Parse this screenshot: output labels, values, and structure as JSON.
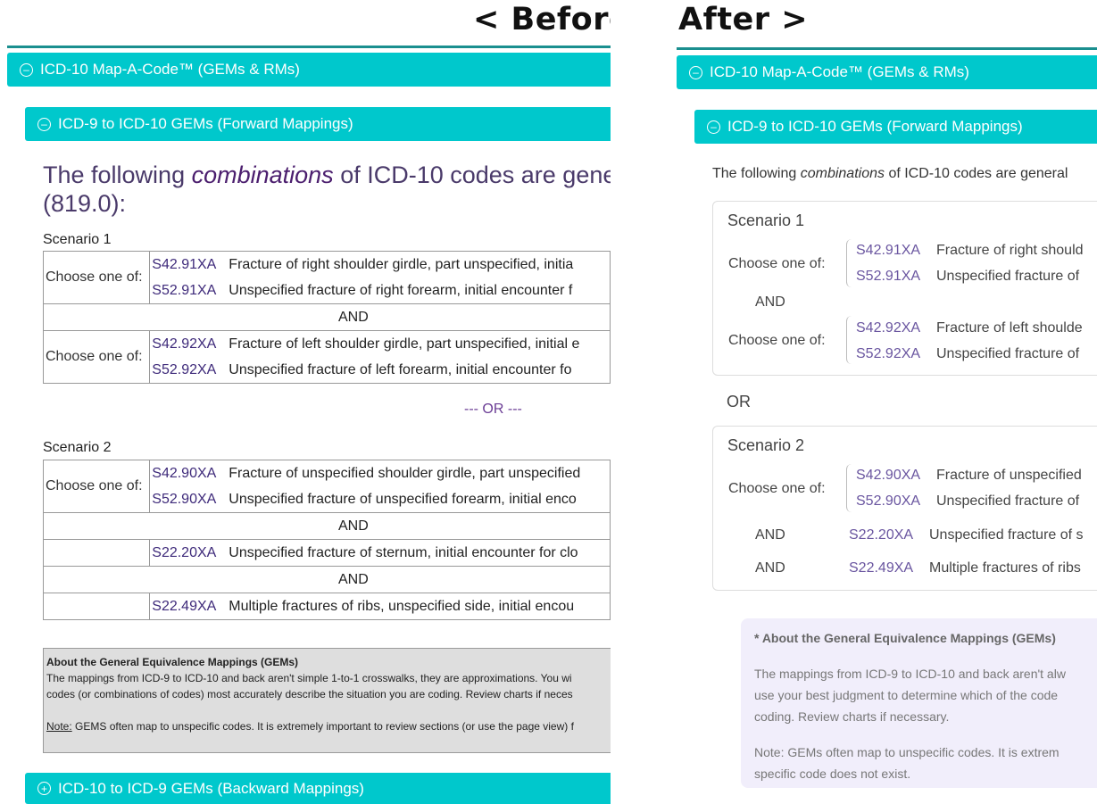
{
  "before": {
    "heading": "< Before",
    "panel_title": "ICD-10 Map-A-Code™ (GEMs & RMs)",
    "section_title": "ICD-9 to ICD-10 GEMs (Forward Mappings)",
    "intro_prefix": "The following ",
    "intro_em": "combinations",
    "intro_suffix": " of ICD-10 codes are gene",
    "intro_line2": "(819.0):",
    "scenario1_label": "Scenario 1",
    "scenario2_label": "Scenario 2",
    "choose_label": "Choose one of:",
    "and_label": "AND",
    "or_label": "--- OR ---",
    "codes": {
      "c1": "S42.91XA",
      "d1": "Fracture of right shoulder girdle, part unspecified, initia",
      "c2": "S52.91XA",
      "d2": "Unspecified fracture of right forearm, initial encounter f",
      "c3": "S42.92XA",
      "d3": "Fracture of left shoulder girdle, part unspecified, initial e",
      "c4": "S52.92XA",
      "d4": "Unspecified fracture of left forearm, initial encounter fo",
      "c5": "S42.90XA",
      "d5": "Fracture of unspecified shoulder girdle, part unspecified",
      "c6": "S52.90XA",
      "d6": "Unspecified fracture of unspecified forearm, initial enco",
      "c7": "S22.20XA",
      "d7": "Unspecified fracture of sternum, initial encounter for clo",
      "c8": "S22.49XA",
      "d8": "Multiple fractures of ribs, unspecified side, initial encou"
    },
    "note_title": "About the General Equivalence Mappings (GEMs)",
    "note_line1": "The mappings from ICD-9 to ICD-10 and back aren't simple 1-to-1 crosswalks, they are approximations. You wi",
    "note_line2": "codes (or combinations of codes) most accurately describe the situation you are coding. Review charts if neces",
    "note_label": "Note:",
    "note_line3": " GEMS often map to unspecific codes. It is extremely important to review sections (or use the page view) f",
    "backward_title": "ICD-10 to ICD-9 GEMs (Backward Mappings)"
  },
  "after": {
    "heading": "After >",
    "panel_title": "ICD-10 Map-A-Code™ (GEMs & RMs)",
    "section_title": "ICD-9 to ICD-10 GEMs (Forward Mappings)",
    "intro_prefix": "The following ",
    "intro_em": "combinations",
    "intro_suffix": " of ICD-10 codes are general",
    "scenario1_title": "Scenario 1",
    "scenario2_title": "Scenario 2",
    "choose_label": "Choose one of:",
    "and_label": "AND",
    "or_label": "OR",
    "codes": {
      "c1": "S42.91XA",
      "d1": "Fracture of right should",
      "c2": "S52.91XA",
      "d2": "Unspecified fracture of",
      "c3": "S42.92XA",
      "d3": "Fracture of left shoulde",
      "c4": "S52.92XA",
      "d4": "Unspecified fracture of",
      "c5": "S42.90XA",
      "d5": "Fracture of unspecified",
      "c6": "S52.90XA",
      "d6": "Unspecified fracture of",
      "c7": "S22.20XA",
      "d7": "Unspecified fracture of s",
      "c8": "S22.49XA",
      "d8": "Multiple fractures of ribs"
    },
    "note_title": "* About the General Equivalence Mappings (GEMs)",
    "note_line1": "The mappings from ICD-9 to ICD-10 and back aren't alw",
    "note_line2": "use your best judgment to determine which of the code",
    "note_line3": "coding. Review charts if necessary.",
    "note_line4": "Note:  GEMs often map to unspecific codes. It is extrem",
    "note_line5": "specific code does not exist."
  },
  "icons": {
    "collapse": "minus-circle-icon",
    "expand": "plus-circle-icon"
  },
  "colors": {
    "bar": "#00c8cc",
    "code_before": "#3e2a7a",
    "code_after": "#6a56a0",
    "note_after_bg": "#f1eefb"
  }
}
